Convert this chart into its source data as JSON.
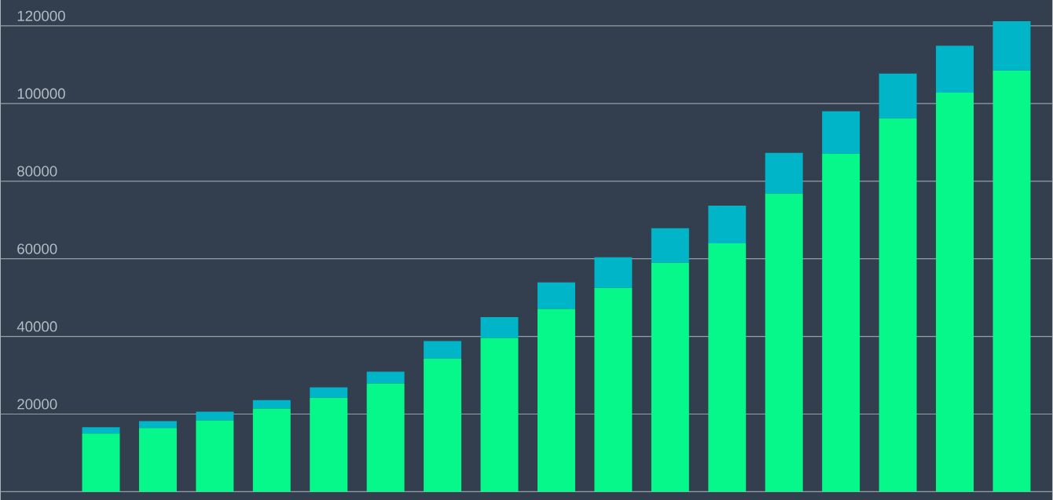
{
  "chart_data": {
    "type": "bar",
    "stacked": true,
    "categories": [
      null,
      null,
      null,
      null,
      null,
      null,
      null,
      null,
      null,
      null,
      null,
      null,
      null,
      null,
      null,
      null,
      null
    ],
    "series": [
      {
        "color": "#07f88a",
        "values": [
          15000,
          16400,
          18400,
          21400,
          24200,
          27900,
          34300,
          39600,
          47100,
          52500,
          59000,
          64000,
          76800,
          87100,
          96200,
          102800,
          108500
        ]
      },
      {
        "color": "#00b5c8",
        "values": [
          1600,
          1800,
          2200,
          2200,
          2700,
          3000,
          4500,
          5400,
          6800,
          7900,
          8900,
          9700,
          10500,
          10900,
          11500,
          12100,
          12700
        ]
      }
    ],
    "ylim": [
      0,
      126000
    ],
    "yticks": [
      {
        "value": 0,
        "label": null
      },
      20000,
      40000,
      60000,
      80000,
      100000,
      120000
    ],
    "grid": "y",
    "tick_labels": "y"
  }
}
